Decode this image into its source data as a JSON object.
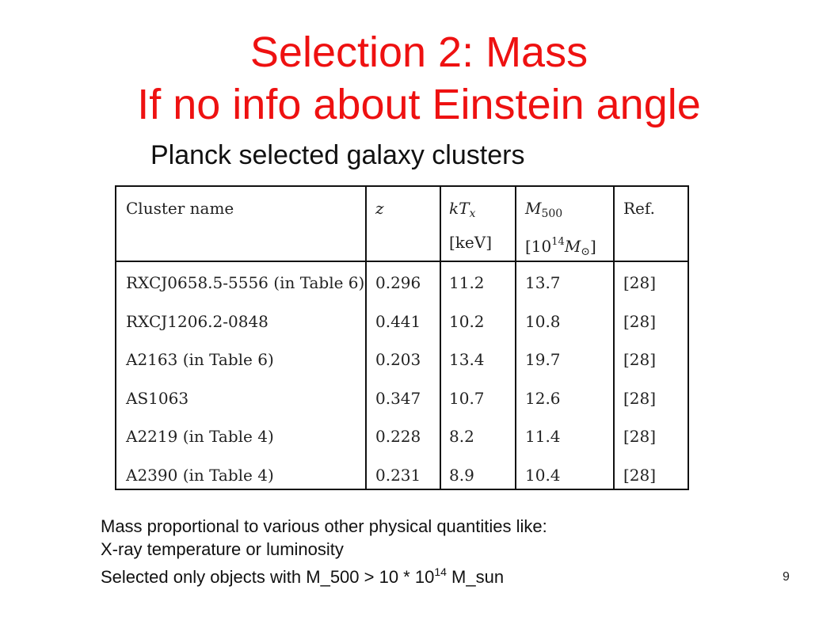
{
  "slide": {
    "title_line1": "Selection 2: Mass",
    "title_line2": "If no info about Einstein angle",
    "subtitle": "Planck selected galaxy clusters",
    "title_color": "#ee1111",
    "page_number": "9"
  },
  "table": {
    "headers": {
      "name": "Cluster name",
      "z": "z",
      "kt_main": "kT",
      "kt_sub": "x",
      "kt_unit": "[keV]",
      "m_main": "M",
      "m_sub": "500",
      "m_unit_prefix": "[10",
      "m_unit_exp": "14",
      "m_unit_sym": "M",
      "m_unit_sun": "⊙",
      "m_unit_close": "]",
      "ref": "Ref."
    },
    "rows": [
      {
        "name": "RXCJ0658.5-5556 (in Table 6)",
        "z": "0.296",
        "kt": "11.2",
        "m500": "13.7",
        "ref": "[28]"
      },
      {
        "name": "RXCJ1206.2-0848",
        "z": "0.441",
        "kt": "10.2",
        "m500": "10.8",
        "ref": "[28]"
      },
      {
        "name": "A2163 (in Table 6)",
        "z": "0.203",
        "kt": "13.4",
        "m500": "19.7",
        "ref": "[28]"
      },
      {
        "name": "AS1063",
        "z": "0.347",
        "kt": "10.7",
        "m500": "12.6",
        "ref": "[28]"
      },
      {
        "name": "A2219 (in Table 4)",
        "z": "0.228",
        "kt": "8.2",
        "m500": "11.4",
        "ref": "[28]"
      },
      {
        "name": "A2390 (in Table 4)",
        "z": "0.231",
        "kt": "8.9",
        "m500": "10.4",
        "ref": "[28]"
      }
    ]
  },
  "notes": {
    "line1": "Mass proportional to various other physical quantities like:",
    "line2": "X-ray temperature or luminosity",
    "line3_prefix": "Selected only objects with M_500 > 10 * 10",
    "line3_exp": "14",
    "line3_suffix": " M_sun"
  }
}
